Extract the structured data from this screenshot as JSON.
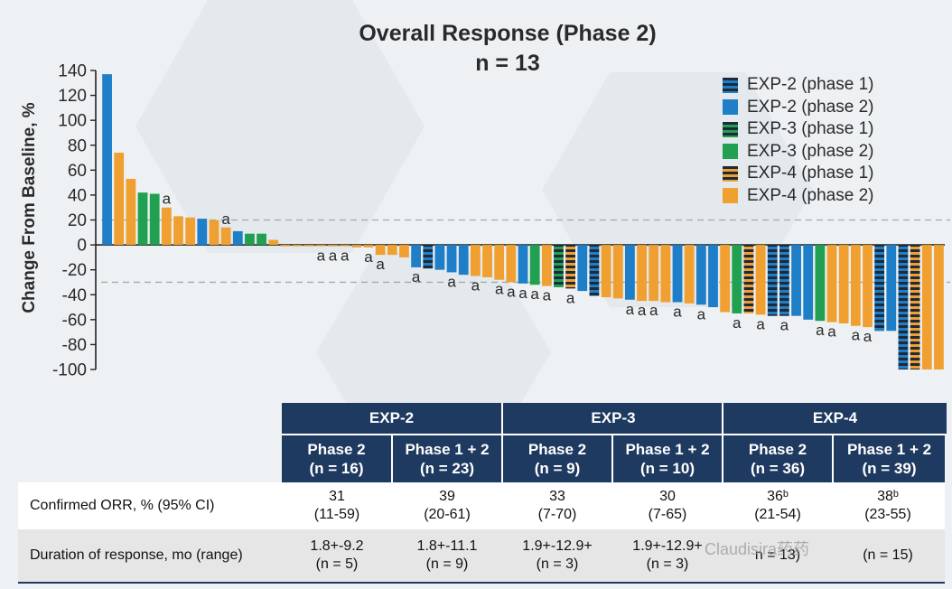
{
  "title": "Overall Response (Phase 2)",
  "subtitle": "n = 13",
  "colors": {
    "blue": "#1f7ec8",
    "orange": "#f0a030",
    "green": "#20a050",
    "dark": "#1e2a3a",
    "header": "#1f3a60"
  },
  "legend": [
    {
      "label": "EXP-2 (phase 1)",
      "color": "#1f7ec8",
      "striped": true
    },
    {
      "label": "EXP-2 (phase 2)",
      "color": "#1f7ec8",
      "striped": false
    },
    {
      "label": "EXP-3 (phase 1)",
      "color": "#20a050",
      "striped": true
    },
    {
      "label": "EXP-3 (phase 2)",
      "color": "#20a050",
      "striped": false
    },
    {
      "label": "EXP-4 (phase 1)",
      "color": "#f0a030",
      "striped": true
    },
    {
      "label": "EXP-4 (phase 2)",
      "color": "#f0a030",
      "striped": false
    }
  ],
  "chart_data": {
    "type": "bar",
    "title": "Overall Response (Phase 2)",
    "subtitle": "n = 13",
    "ylabel": "Change From Baseline, %",
    "xlabel": "",
    "ylim": [
      -100,
      140
    ],
    "yticks": [
      140,
      120,
      100,
      80,
      60,
      40,
      20,
      0,
      -20,
      -40,
      -60,
      -80,
      -100
    ],
    "reference_lines": [
      20,
      -30
    ],
    "annotation_text": "a",
    "bars": [
      {
        "value": 137,
        "group": "EXP-2",
        "phase": 2,
        "label": ""
      },
      {
        "value": 74,
        "group": "EXP-4",
        "phase": 2,
        "label": ""
      },
      {
        "value": 53,
        "group": "EXP-4",
        "phase": 2,
        "label": ""
      },
      {
        "value": 42,
        "group": "EXP-3",
        "phase": 2,
        "label": ""
      },
      {
        "value": 41,
        "group": "EXP-3",
        "phase": 2,
        "label": ""
      },
      {
        "value": 30,
        "group": "EXP-4",
        "phase": 2,
        "label": "a"
      },
      {
        "value": 23,
        "group": "EXP-4",
        "phase": 2,
        "label": ""
      },
      {
        "value": 22,
        "group": "EXP-4",
        "phase": 2,
        "label": ""
      },
      {
        "value": 21,
        "group": "EXP-2",
        "phase": 2,
        "label": ""
      },
      {
        "value": 20,
        "group": "EXP-4",
        "phase": 2,
        "label": ""
      },
      {
        "value": 14,
        "group": "EXP-4",
        "phase": 2,
        "label": "a"
      },
      {
        "value": 11,
        "group": "EXP-2",
        "phase": 2,
        "label": ""
      },
      {
        "value": 9,
        "group": "EXP-3",
        "phase": 2,
        "label": ""
      },
      {
        "value": 9,
        "group": "EXP-3",
        "phase": 2,
        "label": ""
      },
      {
        "value": 4,
        "group": "EXP-4",
        "phase": 2,
        "label": ""
      },
      {
        "value": -1,
        "group": "EXP-4",
        "phase": 2,
        "label": ""
      },
      {
        "value": -1,
        "group": "EXP-4",
        "phase": 2,
        "label": ""
      },
      {
        "value": -1,
        "group": "EXP-4",
        "phase": 2,
        "label": ""
      },
      {
        "value": -1,
        "group": "EXP-4",
        "phase": 2,
        "label": "a"
      },
      {
        "value": -1,
        "group": "EXP-4",
        "phase": 2,
        "label": "a"
      },
      {
        "value": -1,
        "group": "EXP-4",
        "phase": 2,
        "label": "a"
      },
      {
        "value": -2,
        "group": "EXP-4",
        "phase": 2,
        "label": ""
      },
      {
        "value": -2,
        "group": "EXP-4",
        "phase": 2,
        "label": "a"
      },
      {
        "value": -8,
        "group": "EXP-4",
        "phase": 2,
        "label": "a"
      },
      {
        "value": -8,
        "group": "EXP-4",
        "phase": 2,
        "label": ""
      },
      {
        "value": -10,
        "group": "EXP-4",
        "phase": 2,
        "label": ""
      },
      {
        "value": -18,
        "group": "EXP-2",
        "phase": 2,
        "label": "a"
      },
      {
        "value": -19,
        "group": "EXP-2",
        "phase": 1,
        "label": ""
      },
      {
        "value": -20,
        "group": "EXP-2",
        "phase": 2,
        "label": ""
      },
      {
        "value": -22,
        "group": "EXP-2",
        "phase": 2,
        "label": "a"
      },
      {
        "value": -24,
        "group": "EXP-2",
        "phase": 2,
        "label": ""
      },
      {
        "value": -25,
        "group": "EXP-4",
        "phase": 2,
        "label": "a"
      },
      {
        "value": -26,
        "group": "EXP-4",
        "phase": 2,
        "label": ""
      },
      {
        "value": -28,
        "group": "EXP-4",
        "phase": 2,
        "label": "a"
      },
      {
        "value": -30,
        "group": "EXP-4",
        "phase": 2,
        "label": "a"
      },
      {
        "value": -31,
        "group": "EXP-2",
        "phase": 2,
        "label": "a"
      },
      {
        "value": -32,
        "group": "EXP-3",
        "phase": 2,
        "label": "a"
      },
      {
        "value": -33,
        "group": "EXP-4",
        "phase": 2,
        "label": "a"
      },
      {
        "value": -34,
        "group": "EXP-3",
        "phase": 1,
        "label": ""
      },
      {
        "value": -35,
        "group": "EXP-4",
        "phase": 1,
        "label": "a"
      },
      {
        "value": -37,
        "group": "EXP-2",
        "phase": 2,
        "label": ""
      },
      {
        "value": -41,
        "group": "EXP-2",
        "phase": 1,
        "label": ""
      },
      {
        "value": -42,
        "group": "EXP-4",
        "phase": 2,
        "label": ""
      },
      {
        "value": -43,
        "group": "EXP-4",
        "phase": 2,
        "label": ""
      },
      {
        "value": -44,
        "group": "EXP-2",
        "phase": 2,
        "label": "a"
      },
      {
        "value": -45,
        "group": "EXP-4",
        "phase": 2,
        "label": "a"
      },
      {
        "value": -45,
        "group": "EXP-4",
        "phase": 2,
        "label": "a"
      },
      {
        "value": -46,
        "group": "EXP-4",
        "phase": 2,
        "label": ""
      },
      {
        "value": -46,
        "group": "EXP-2",
        "phase": 2,
        "label": "a"
      },
      {
        "value": -47,
        "group": "EXP-4",
        "phase": 2,
        "label": ""
      },
      {
        "value": -48,
        "group": "EXP-2",
        "phase": 2,
        "label": "a"
      },
      {
        "value": -50,
        "group": "EXP-2",
        "phase": 2,
        "label": ""
      },
      {
        "value": -54,
        "group": "EXP-4",
        "phase": 2,
        "label": ""
      },
      {
        "value": -55,
        "group": "EXP-3",
        "phase": 2,
        "label": "a"
      },
      {
        "value": -55,
        "group": "EXP-4",
        "phase": 1,
        "label": ""
      },
      {
        "value": -56,
        "group": "EXP-4",
        "phase": 2,
        "label": "a"
      },
      {
        "value": -57,
        "group": "EXP-2",
        "phase": 1,
        "label": ""
      },
      {
        "value": -57,
        "group": "EXP-2",
        "phase": 1,
        "label": "a"
      },
      {
        "value": -57,
        "group": "EXP-2",
        "phase": 2,
        "label": ""
      },
      {
        "value": -60,
        "group": "EXP-2",
        "phase": 2,
        "label": ""
      },
      {
        "value": -61,
        "group": "EXP-3",
        "phase": 2,
        "label": "a"
      },
      {
        "value": -62,
        "group": "EXP-4",
        "phase": 2,
        "label": "a"
      },
      {
        "value": -63,
        "group": "EXP-4",
        "phase": 2,
        "label": ""
      },
      {
        "value": -65,
        "group": "EXP-4",
        "phase": 2,
        "label": "a"
      },
      {
        "value": -66,
        "group": "EXP-4",
        "phase": 2,
        "label": "a"
      },
      {
        "value": -69,
        "group": "EXP-2",
        "phase": 1,
        "label": ""
      },
      {
        "value": -69,
        "group": "EXP-2",
        "phase": 2,
        "label": ""
      },
      {
        "value": -100,
        "group": "EXP-2",
        "phase": 1,
        "label": ""
      },
      {
        "value": -100,
        "group": "EXP-4",
        "phase": 1,
        "label": ""
      },
      {
        "value": -100,
        "group": "EXP-4",
        "phase": 2,
        "label": ""
      },
      {
        "value": -100,
        "group": "EXP-4",
        "phase": 2,
        "label": ""
      }
    ]
  },
  "table": {
    "groups": [
      "EXP-2",
      "EXP-3",
      "EXP-4"
    ],
    "subheaders": [
      {
        "line1": "Phase 2",
        "line2": "(n = 16)"
      },
      {
        "line1": "Phase 1 + 2",
        "line2": "(n = 23)"
      },
      {
        "line1": "Phase 2",
        "line2": "(n = 9)"
      },
      {
        "line1": "Phase 1 + 2",
        "line2": "(n = 10)"
      },
      {
        "line1": "Phase 2",
        "line2": "(n = 36)"
      },
      {
        "line1": "Phase 1 + 2",
        "line2": "(n = 39)"
      }
    ],
    "rows": [
      {
        "label": "Confirmed ORR, % (95% CI)",
        "cells": [
          {
            "top": "31",
            "bottom": "(11-59)"
          },
          {
            "top": "39",
            "bottom": "(20-61)"
          },
          {
            "top": "33",
            "bottom": "(7-70)"
          },
          {
            "top": "30",
            "bottom": "(7-65)"
          },
          {
            "top": "36ᵇ",
            "bottom": "(21-54)"
          },
          {
            "top": "38ᵇ",
            "bottom": "(23-55)"
          }
        ]
      },
      {
        "label": "Duration of response, mo (range)",
        "cells": [
          {
            "top": "1.8+-9.2",
            "bottom": "(n = 5)"
          },
          {
            "top": "1.8+-11.1",
            "bottom": "(n = 9)"
          },
          {
            "top": "1.9+-12.9+",
            "bottom": "(n = 3)"
          },
          {
            "top": "1.9+-12.9+",
            "bottom": "(n = 3)"
          },
          {
            "top": "",
            "bottom": "n = 13)"
          },
          {
            "top": "",
            "bottom": "(n = 15)"
          }
        ]
      }
    ]
  },
  "watermark": "Claudisira药药"
}
